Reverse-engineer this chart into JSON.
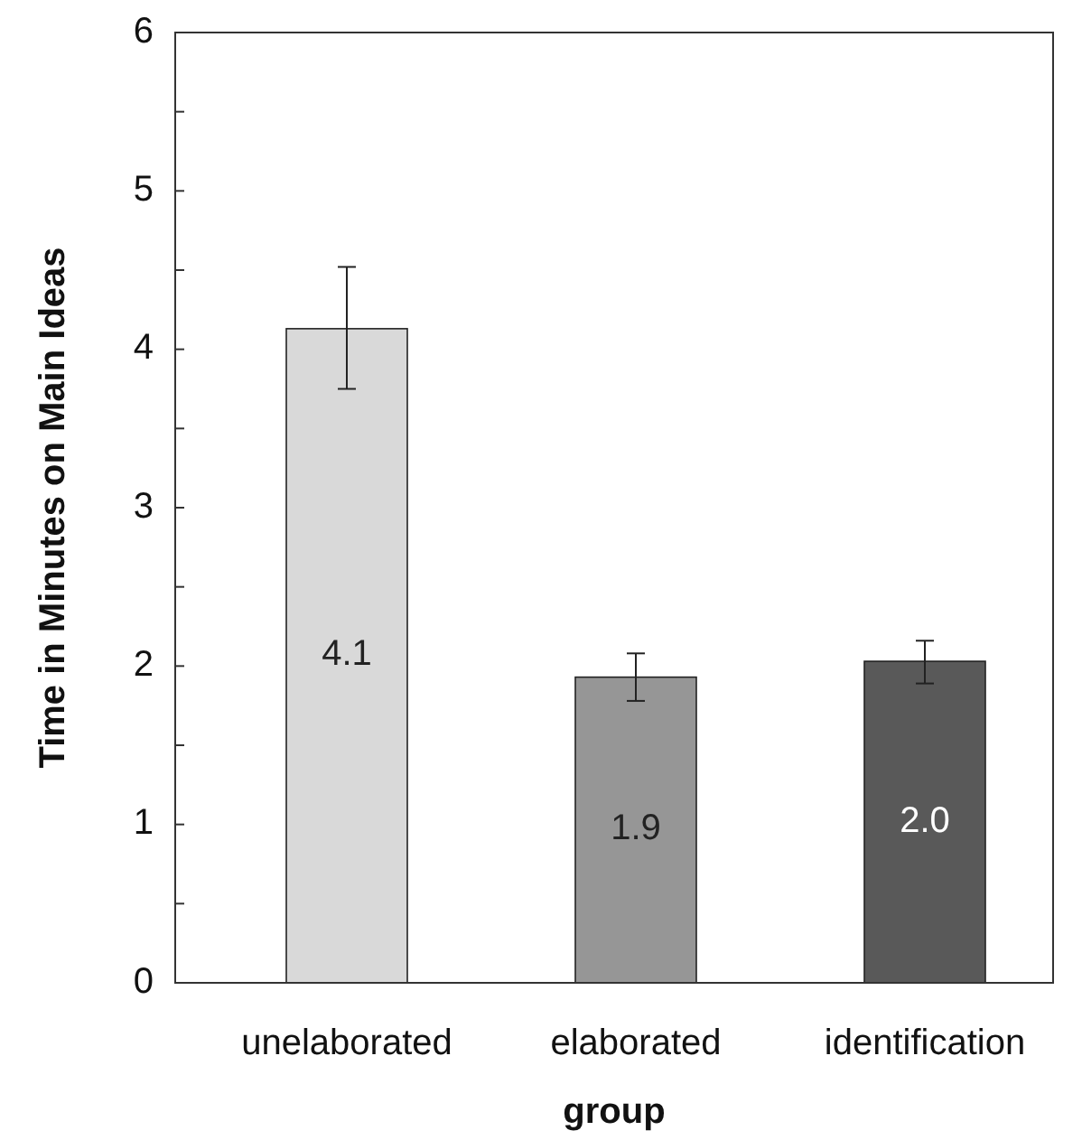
{
  "chart_data": {
    "type": "bar",
    "xlabel": "group",
    "ylabel": "Time in Minutes on Main Ideas",
    "categories": [
      "unelaborated",
      "elaborated",
      "identification"
    ],
    "values": [
      4.13,
      1.93,
      2.03
    ],
    "colors": [
      "#d9d9d9",
      "#969696",
      "#595959"
    ],
    "errors": [
      [
        3.75,
        4.52
      ],
      [
        1.78,
        2.08
      ],
      [
        1.89,
        2.16
      ]
    ],
    "value_labels": [
      "4.1",
      "1.9",
      "2.0"
    ],
    "ylim": [
      0,
      6
    ],
    "yticks": [
      0,
      {
        "value": 0.5,
        "label": null
      },
      1,
      {
        "value": 1.5,
        "label": null
      },
      2,
      {
        "value": 2.5,
        "label": null
      },
      3,
      {
        "value": 3.5,
        "label": null
      },
      4,
      {
        "value": 4.5,
        "label": null
      },
      5,
      {
        "value": 5.5,
        "label": null
      },
      6
    ],
    "grid": false
  }
}
